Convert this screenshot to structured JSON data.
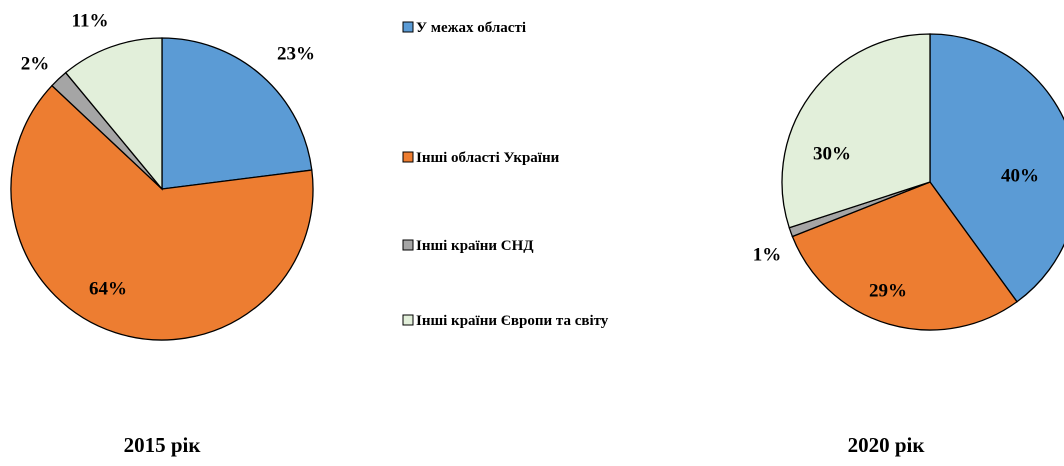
{
  "chart_data": [
    {
      "type": "pie",
      "title": "2015 рік",
      "categories": [
        "У межах області",
        "Інші області України",
        "Інші країни СНД",
        "Інші країни Європи та світу"
      ],
      "values": [
        23,
        64,
        2,
        11
      ],
      "value_labels": [
        "23%",
        "64%",
        "2%",
        "11%"
      ],
      "colors": [
        "#5b9bd5",
        "#ed7d31",
        "#a5a5a5",
        "#e2efda"
      ],
      "legend": "center"
    },
    {
      "type": "pie",
      "title": "2020 рік",
      "categories": [
        "У межах області",
        "Інші області України",
        "Інші країни СНД",
        "Інші країни Європи та світу"
      ],
      "values": [
        40,
        29,
        1,
        30
      ],
      "value_labels": [
        "40%",
        "29%",
        "1%",
        "30%"
      ],
      "colors": [
        "#5b9bd5",
        "#ed7d31",
        "#a5a5a5",
        "#e2efda"
      ]
    }
  ]
}
